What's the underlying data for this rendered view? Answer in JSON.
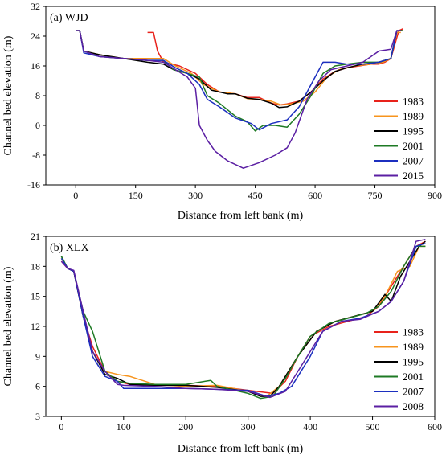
{
  "chart_data": [
    {
      "panel_label": "(a) WJD",
      "type": "line",
      "xlabel": "Distance from left bank (m)",
      "ylabel": "Channel bed elevation (m)",
      "xlim": [
        -75,
        900
      ],
      "ylim": [
        -16,
        32
      ],
      "xticks": [
        0,
        150,
        300,
        450,
        600,
        750,
        900
      ],
      "yticks": [
        -16,
        -8,
        0,
        8,
        16,
        24,
        32
      ],
      "legend_position": "lower-right",
      "series": [
        {
          "name": "1983",
          "color": "#e8221b",
          "x": [
            180,
            195,
            205,
            220,
            260,
            300,
            330,
            360,
            400,
            430,
            460,
            490,
            510,
            530,
            560,
            590,
            620,
            650,
            680,
            710,
            740,
            760,
            775,
            790,
            810,
            820
          ],
          "y": [
            25,
            25,
            20,
            17,
            16,
            14,
            11,
            9,
            8.5,
            7.5,
            7.5,
            6,
            5.5,
            5.8,
            6.5,
            9,
            12.5,
            14.5,
            15.5,
            16,
            16.5,
            16.5,
            17,
            18,
            25.5,
            26
          ]
        },
        {
          "name": "1989",
          "color": "#f7941d",
          "x": [
            0,
            10,
            20,
            60,
            120,
            180,
            220,
            250,
            290,
            320,
            360,
            400,
            430,
            460,
            490,
            515,
            540,
            570,
            600,
            630,
            660,
            700,
            740,
            770,
            790,
            805,
            815
          ],
          "y": [
            25.5,
            25.5,
            20,
            19,
            18,
            18,
            18,
            16,
            14,
            11,
            9,
            8.5,
            7.2,
            7,
            6.5,
            5.5,
            5.8,
            6.5,
            9,
            13,
            15,
            16,
            16.5,
            17,
            18,
            25,
            25
          ]
        },
        {
          "name": "1995",
          "color": "#000000",
          "x": [
            0,
            10,
            20,
            60,
            120,
            180,
            220,
            245,
            280,
            310,
            340,
            380,
            400,
            430,
            460,
            490,
            510,
            530,
            560,
            590,
            620,
            650,
            680,
            720,
            760,
            790,
            805,
            820
          ],
          "y": [
            25.5,
            25.5,
            20,
            19,
            18,
            17,
            16.5,
            15,
            14,
            12.5,
            9.5,
            8.5,
            8.5,
            7.3,
            7,
            6,
            4.8,
            5,
            6.5,
            9,
            12,
            14.5,
            15.5,
            16.5,
            17,
            18,
            25.5,
            25.5
          ]
        },
        {
          "name": "2001",
          "color": "#1e7a24",
          "x": [
            0,
            10,
            20,
            60,
            120,
            180,
            220,
            245,
            280,
            310,
            330,
            360,
            400,
            430,
            450,
            470,
            500,
            530,
            560,
            590,
            620,
            650,
            680,
            720,
            760,
            790,
            805,
            820
          ],
          "y": [
            25.5,
            25.5,
            20,
            18.5,
            18,
            17.5,
            17.5,
            15,
            14,
            13,
            8,
            6,
            2.5,
            1,
            -1.5,
            0,
            0,
            -0.5,
            3,
            8,
            14,
            16,
            16.5,
            17,
            17,
            18,
            25.5,
            25.5
          ]
        },
        {
          "name": "2007",
          "color": "#1c2fbf",
          "x": [
            0,
            10,
            20,
            60,
            120,
            180,
            220,
            250,
            280,
            310,
            330,
            360,
            400,
            440,
            460,
            490,
            530,
            560,
            590,
            620,
            650,
            680,
            720,
            760,
            790,
            805,
            815
          ],
          "y": [
            25.5,
            25.5,
            19.5,
            18.5,
            18,
            17.5,
            17.5,
            15.5,
            14,
            11,
            7,
            5,
            2,
            0.5,
            -1.2,
            0.5,
            1.5,
            5,
            11,
            17,
            17,
            16.5,
            16.5,
            17,
            18,
            25.5,
            25.5
          ]
        },
        {
          "name": "2015",
          "color": "#5b1fa3",
          "x": [
            0,
            10,
            20,
            60,
            120,
            180,
            220,
            250,
            280,
            300,
            310,
            330,
            350,
            380,
            420,
            460,
            500,
            530,
            550,
            580,
            610,
            640,
            680,
            720,
            760,
            790,
            805,
            815
          ],
          "y": [
            25.5,
            25.5,
            20,
            18.5,
            18,
            17.5,
            17,
            15,
            13,
            10,
            0,
            -4,
            -7,
            -9.5,
            -11.5,
            -10,
            -8,
            -6,
            -2,
            7,
            12,
            15,
            16,
            17,
            20,
            20.5,
            25.5,
            25.5
          ]
        }
      ]
    },
    {
      "panel_label": "(b) XLX",
      "type": "line",
      "xlabel": "Distance from left bank (m)",
      "ylabel": "Channel bed elevation (m)",
      "xlim": [
        -25,
        600
      ],
      "ylim": [
        3,
        21
      ],
      "xticks": [
        0,
        100,
        200,
        300,
        400,
        500,
        600
      ],
      "yticks": [
        3,
        6,
        9,
        12,
        15,
        18,
        21
      ],
      "legend_position": "lower-right",
      "series": [
        {
          "name": "1983",
          "color": "#e8221b",
          "x": [
            0,
            10,
            20,
            35,
            50,
            70,
            90,
            110,
            150,
            200,
            250,
            300,
            340,
            360,
            380,
            400,
            430,
            460,
            490,
            510,
            530,
            550,
            570,
            585
          ],
          "y": [
            18.5,
            17.8,
            17.5,
            13,
            10,
            7.5,
            6.5,
            6.2,
            6.1,
            6.1,
            6,
            5.6,
            5.3,
            6.5,
            9,
            11,
            12,
            12.5,
            13,
            14,
            16,
            18,
            20,
            20.5
          ]
        },
        {
          "name": "1989",
          "color": "#f7941d",
          "x": [
            0,
            10,
            20,
            35,
            50,
            70,
            90,
            110,
            150,
            200,
            250,
            300,
            330,
            350,
            380,
            410,
            440,
            470,
            500,
            520,
            540,
            560,
            575,
            585
          ],
          "y": [
            18.8,
            17.8,
            17.5,
            13,
            9.5,
            7.5,
            7.2,
            7,
            6.2,
            6,
            6.1,
            5.5,
            5,
            6,
            9,
            11.5,
            12.5,
            13,
            13.5,
            15,
            17.5,
            18,
            20,
            20
          ]
        },
        {
          "name": "1995",
          "color": "#000000",
          "x": [
            0,
            10,
            20,
            35,
            50,
            70,
            90,
            110,
            150,
            200,
            250,
            300,
            320,
            335,
            350,
            380,
            410,
            440,
            470,
            500,
            520,
            530,
            545,
            560,
            575,
            585
          ],
          "y": [
            19,
            17.8,
            17.5,
            13,
            9.5,
            7.2,
            6.8,
            6.2,
            6.1,
            6.1,
            5.9,
            5.5,
            5,
            5,
            6,
            9,
            11.5,
            12.5,
            13,
            13.5,
            15.2,
            14.5,
            17,
            18.5,
            20,
            20.5
          ]
        },
        {
          "name": "2001",
          "color": "#1e7a24",
          "x": [
            0,
            10,
            20,
            35,
            50,
            70,
            90,
            110,
            150,
            200,
            240,
            250,
            300,
            320,
            340,
            360,
            380,
            400,
            430,
            460,
            490,
            510,
            530,
            550,
            570,
            585
          ],
          "y": [
            19,
            17.8,
            17.5,
            13.5,
            11.5,
            7.5,
            6.5,
            6.3,
            6.2,
            6.2,
            6.6,
            6,
            5.3,
            4.8,
            5,
            6.8,
            9,
            11,
            12.3,
            12.8,
            13.3,
            14,
            15.5,
            18,
            20,
            20
          ]
        },
        {
          "name": "2007",
          "color": "#1c2fbf",
          "x": [
            0,
            10,
            20,
            35,
            50,
            70,
            90,
            100,
            150,
            200,
            250,
            300,
            330,
            350,
            370,
            400,
            420,
            450,
            480,
            510,
            530,
            550,
            570,
            585
          ],
          "y": [
            18.8,
            17.8,
            17.5,
            13,
            9,
            7,
            6.5,
            5.8,
            5.8,
            5.8,
            5.7,
            5.6,
            5,
            5.3,
            6,
            9,
            11.5,
            12.5,
            12.8,
            13.5,
            14.5,
            16.5,
            20,
            20.3
          ]
        },
        {
          "name": "2008",
          "color": "#5b1fa3",
          "x": [
            0,
            10,
            20,
            35,
            50,
            70,
            90,
            100,
            150,
            200,
            250,
            300,
            335,
            360,
            390,
            420,
            450,
            480,
            510,
            530,
            550,
            570,
            585
          ],
          "y": [
            18.5,
            17.8,
            17.6,
            13.5,
            9.5,
            7.5,
            6.2,
            6.1,
            6,
            5.8,
            5.7,
            5.5,
            4.9,
            5.5,
            8.5,
            11.5,
            12.5,
            12.7,
            13.5,
            14.5,
            16.5,
            20.5,
            20.7
          ]
        }
      ]
    }
  ]
}
